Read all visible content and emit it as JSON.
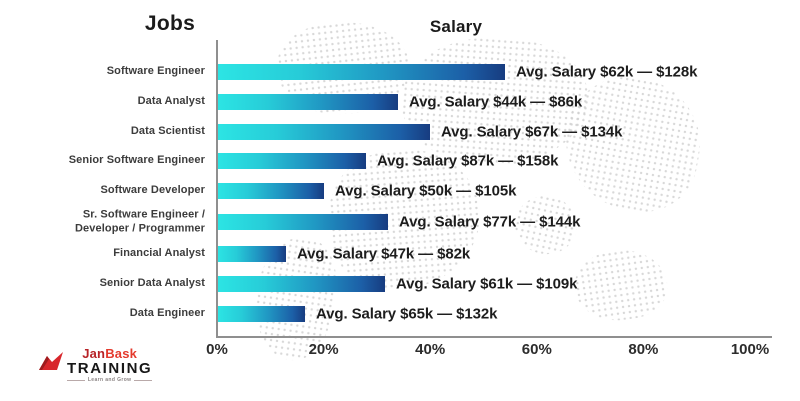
{
  "header": {
    "jobs_title": "Jobs",
    "salary_title": "Salary"
  },
  "chart_data": {
    "type": "bar",
    "orientation": "horizontal",
    "title_left": "Jobs",
    "title_right": "Salary",
    "grid": false,
    "legend": "none",
    "x_axis": {
      "unit": "%",
      "range": [
        0,
        100
      ],
      "ticks": [
        "0%",
        "20%",
        "40%",
        "60%",
        "80%",
        "100%"
      ]
    },
    "bar_gradient": [
      "#2ce5e4",
      "#173c80"
    ],
    "rows": [
      {
        "job_lines": [
          "Software Engineer"
        ],
        "label": "Avg. Salary $62k — $128k",
        "avg_low_k": 62,
        "avg_high_k": 128,
        "bar_pct": 54
      },
      {
        "job_lines": [
          "Data Analyst"
        ],
        "label": "Avg. Salary $44k — $86k",
        "avg_low_k": 44,
        "avg_high_k": 86,
        "bar_pct": 34
      },
      {
        "job_lines": [
          "Data Scientist"
        ],
        "label": "Avg. Salary $67k — $134k",
        "avg_low_k": 67,
        "avg_high_k": 134,
        "bar_pct": 40
      },
      {
        "job_lines": [
          "Senior Software Engineer"
        ],
        "label": "Avg. Salary $87k — $158k",
        "avg_low_k": 87,
        "avg_high_k": 158,
        "bar_pct": 28
      },
      {
        "job_lines": [
          "Software Developer"
        ],
        "label": "Avg. Salary $50k — $105k",
        "avg_low_k": 50,
        "avg_high_k": 105,
        "bar_pct": 20
      },
      {
        "job_lines": [
          "Sr. Software Engineer /",
          "Developer / Programmer"
        ],
        "label": "Avg. Salary $77k — $144k",
        "avg_low_k": 77,
        "avg_high_k": 144,
        "bar_pct": 32
      },
      {
        "job_lines": [
          "Financial Analyst"
        ],
        "label": "Avg. Salary $47k — $82k",
        "avg_low_k": 47,
        "avg_high_k": 82,
        "bar_pct": 13
      },
      {
        "job_lines": [
          "Senior Data Analyst"
        ],
        "label": "Avg. Salary $61k — $109k",
        "avg_low_k": 61,
        "avg_high_k": 109,
        "bar_pct": 31.5
      },
      {
        "job_lines": [
          "Data Engineer"
        ],
        "label": "Avg. Salary $65k — $132k",
        "avg_low_k": 65,
        "avg_high_k": 132,
        "bar_pct": 16.5
      }
    ]
  },
  "logo": {
    "brand_first": "Jan",
    "brand_second": "Bask",
    "brand_sub": "TRAINING",
    "tagline": "Learn and Grow",
    "brand_first_color": "#b72327",
    "brand_second_color": "#e43a2d"
  }
}
